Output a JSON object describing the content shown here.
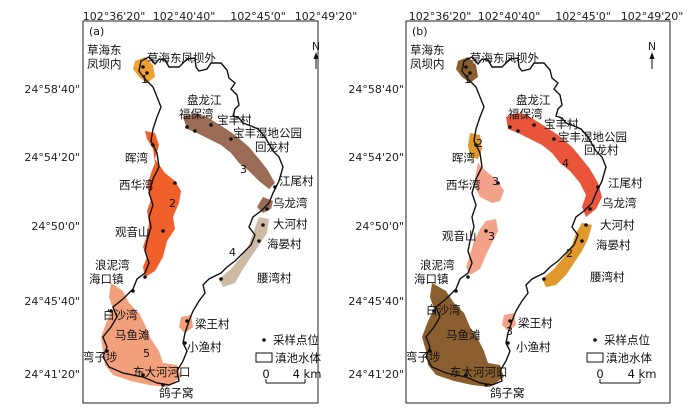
{
  "lon_ticks": [
    "102°36'20\"",
    "102°40'40\"",
    "102°45'0\"",
    "102°49'20\""
  ],
  "lat_ticks": [
    "24°58'40\"",
    "24°54'20\"",
    "24°50'0\"",
    "24°45'40\"",
    "24°41'20\""
  ],
  "north": "N",
  "panels": [
    {
      "label": "(a)",
      "zones": [
        {
          "id": "1",
          "color": "#f0a030"
        },
        {
          "id": "2",
          "color": "#f0602a"
        },
        {
          "id": "3",
          "color": "#9a6b55"
        },
        {
          "id": "4",
          "color": "#cdbba6"
        },
        {
          "id": "5",
          "color": "#f2a07c"
        }
      ]
    },
    {
      "label": "(b)",
      "zones": [
        {
          "id": "1",
          "color": "#8a5e2e"
        },
        {
          "id": "2",
          "color": "#e0982c"
        },
        {
          "id": "3",
          "color": "#f3a38a"
        },
        {
          "id": "4",
          "color": "#e8553a"
        }
      ]
    }
  ],
  "places": {
    "caohai_east_inner": "草海东\n凤坝内",
    "caohai_east_outer": "草海东凤坝外",
    "panlongjiang": "盘龙江",
    "fubaowan": "福保湾",
    "baofeng": "宝丰村",
    "baofeng_park": "宝丰湿地公园",
    "huilong": "回龙村",
    "huiwan": "晖湾",
    "xihuawan": "西华湾",
    "jiangwei": "江尾村",
    "wulongwan": "乌龙湾",
    "guanyinshan": "观音山",
    "dahe": "大河村",
    "haiyan": "海晏村",
    "langniwan": "浪泥湾",
    "haikou": "海口镇",
    "yaowan": "腰湾村",
    "baishawan": "白沙湾",
    "liangwang": "梁王村",
    "mayutan": "马鱼滩",
    "xiaoyu": "小渔村",
    "wanzishao": "弯子埗",
    "dongdahe": "东大河河口",
    "gezi": "鸽子窝"
  },
  "legend": {
    "sample": "采样点位",
    "lake": "滇池水体",
    "scale_zero": "0",
    "scale_end": "4 km"
  }
}
